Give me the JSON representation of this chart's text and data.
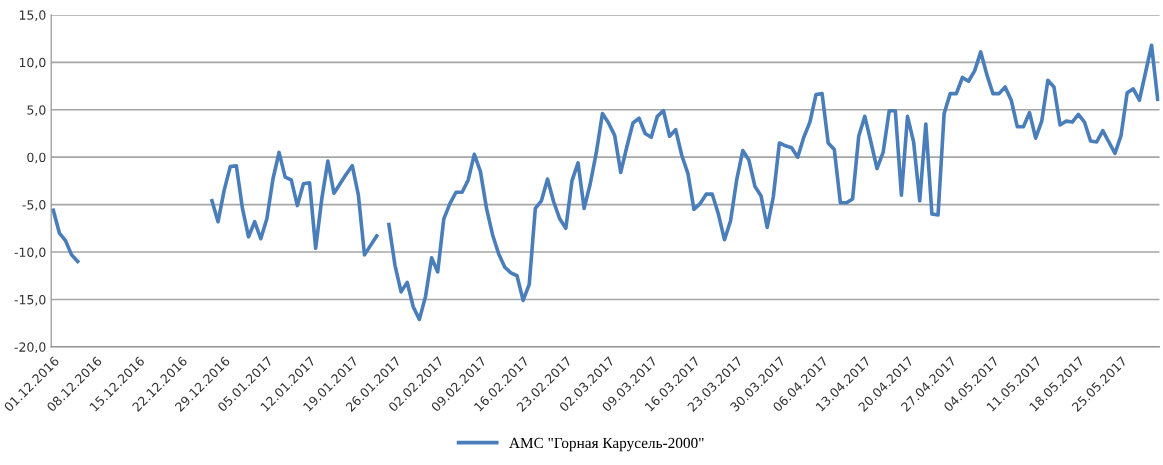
{
  "chart_data": {
    "type": "line",
    "x": [
      "2016-12-01",
      "2016-12-02",
      "2016-12-03",
      "2016-12-04",
      "2016-12-05",
      "2016-12-06",
      "2016-12-07",
      "2016-12-08",
      "2016-12-09",
      "2016-12-10",
      "2016-12-11",
      "2016-12-12",
      "2016-12-13",
      "2016-12-14",
      "2016-12-15",
      "2016-12-16",
      "2016-12-17",
      "2016-12-18",
      "2016-12-19",
      "2016-12-20",
      "2016-12-21",
      "2016-12-22",
      "2016-12-23",
      "2016-12-24",
      "2016-12-25",
      "2016-12-26",
      "2016-12-27",
      "2016-12-28",
      "2016-12-29",
      "2016-12-30",
      "2016-12-31",
      "2017-01-01",
      "2017-01-02",
      "2017-01-03",
      "2017-01-04",
      "2017-01-05",
      "2017-01-06",
      "2017-01-07",
      "2017-01-08",
      "2017-01-09",
      "2017-01-10",
      "2017-01-11",
      "2017-01-12",
      "2017-01-13",
      "2017-01-14",
      "2017-01-15",
      "2017-01-16",
      "2017-01-17",
      "2017-01-18",
      "2017-01-19",
      "2017-01-20",
      "2017-01-21",
      "2017-01-22",
      "2017-01-23",
      "2017-01-24",
      "2017-01-25",
      "2017-01-26",
      "2017-01-27",
      "2017-01-28",
      "2017-01-29",
      "2017-01-30",
      "2017-01-31",
      "2017-02-01",
      "2017-02-02",
      "2017-02-03",
      "2017-02-04",
      "2017-02-05",
      "2017-02-06",
      "2017-02-07",
      "2017-02-08",
      "2017-02-09",
      "2017-02-10",
      "2017-02-11",
      "2017-02-12",
      "2017-02-13",
      "2017-02-14",
      "2017-02-15",
      "2017-02-16",
      "2017-02-17",
      "2017-02-18",
      "2017-02-19",
      "2017-02-20",
      "2017-02-21",
      "2017-02-22",
      "2017-02-23",
      "2017-02-24",
      "2017-02-25",
      "2017-02-26",
      "2017-02-27",
      "2017-02-28",
      "2017-03-01",
      "2017-03-02",
      "2017-03-03",
      "2017-03-04",
      "2017-03-05",
      "2017-03-06",
      "2017-03-07",
      "2017-03-08",
      "2017-03-09",
      "2017-03-10",
      "2017-03-11",
      "2017-03-12",
      "2017-03-13",
      "2017-03-14",
      "2017-03-15",
      "2017-03-16",
      "2017-03-17",
      "2017-03-18",
      "2017-03-19",
      "2017-03-20",
      "2017-03-21",
      "2017-03-22",
      "2017-03-23",
      "2017-03-24",
      "2017-03-25",
      "2017-03-26",
      "2017-03-27",
      "2017-03-28",
      "2017-03-29",
      "2017-03-30",
      "2017-03-31",
      "2017-04-01",
      "2017-04-02",
      "2017-04-03",
      "2017-04-04",
      "2017-04-05",
      "2017-04-06",
      "2017-04-07",
      "2017-04-08",
      "2017-04-09",
      "2017-04-10",
      "2017-04-11",
      "2017-04-12",
      "2017-04-13",
      "2017-04-14",
      "2017-04-15",
      "2017-04-16",
      "2017-04-17",
      "2017-04-18",
      "2017-04-19",
      "2017-04-20",
      "2017-04-21",
      "2017-04-22",
      "2017-04-23",
      "2017-04-24",
      "2017-04-25",
      "2017-04-26",
      "2017-04-27",
      "2017-04-28",
      "2017-04-29",
      "2017-04-30",
      "2017-05-01",
      "2017-05-02",
      "2017-05-03",
      "2017-05-04",
      "2017-05-05",
      "2017-05-06",
      "2017-05-07",
      "2017-05-08",
      "2017-05-09",
      "2017-05-10",
      "2017-05-11",
      "2017-05-12",
      "2017-05-13",
      "2017-05-14",
      "2017-05-15",
      "2017-05-16",
      "2017-05-17",
      "2017-05-18",
      "2017-05-19",
      "2017-05-20",
      "2017-05-21",
      "2017-05-22",
      "2017-05-23",
      "2017-05-24",
      "2017-05-25",
      "2017-05-26",
      "2017-05-27",
      "2017-05-28",
      "2017-05-29",
      "2017-05-30",
      "2017-05-31"
    ],
    "series": [
      {
        "name": "АМС \"Горная Карусель-2000\"",
        "color": "#4a7ebb",
        "values": [
          -5.6,
          -8.0,
          -8.8,
          -10.3,
          -11.0,
          null,
          null,
          null,
          null,
          null,
          null,
          null,
          null,
          null,
          null,
          null,
          null,
          null,
          null,
          null,
          null,
          null,
          null,
          null,
          null,
          null,
          -4.6,
          -6.8,
          -3.5,
          -1.0,
          -0.9,
          -5.4,
          -8.4,
          -6.8,
          -8.6,
          -6.5,
          -2.3,
          0.5,
          -2.1,
          -2.4,
          -5.1,
          -2.8,
          -2.7,
          -9.6,
          -4.4,
          -0.4,
          -3.8,
          -2.8,
          -1.8,
          -0.9,
          -4.0,
          -10.3,
          -9.3,
          -8.3,
          null,
          -7.1,
          -11.4,
          -14.2,
          -13.2,
          -15.8,
          -17.1,
          -14.7,
          -10.6,
          -12.1,
          -6.5,
          -4.9,
          -3.7,
          -3.7,
          -2.4,
          0.3,
          -1.5,
          -5.4,
          -8.2,
          -10.2,
          -11.6,
          -12.2,
          -12.5,
          -15.1,
          -13.4,
          -5.4,
          -4.6,
          -2.3,
          -4.7,
          -6.5,
          -7.5,
          -2.5,
          -0.6,
          -5.4,
          -2.8,
          0.5,
          4.6,
          3.6,
          2.3,
          -1.6,
          1.1,
          3.6,
          4.1,
          2.5,
          2.1,
          4.3,
          4.9,
          2.2,
          2.9,
          0.2,
          -1.7,
          -5.5,
          -4.9,
          -3.9,
          -3.9,
          -6.0,
          -8.7,
          -6.7,
          -2.4,
          0.7,
          -0.3,
          -3.1,
          -4.1,
          -7.4,
          -4.2,
          1.5,
          1.2,
          1.0,
          0.0,
          2.1,
          3.7,
          6.6,
          6.7,
          1.5,
          0.8,
          -4.8,
          -4.8,
          -4.4,
          2.2,
          4.3,
          1.6,
          -1.2,
          0.5,
          4.9,
          4.9,
          -4.0,
          4.3,
          1.6,
          -4.6,
          3.5,
          -6.0,
          -6.1,
          4.6,
          6.7,
          6.7,
          8.4,
          8.0,
          9.1,
          11.1,
          8.7,
          6.7,
          6.7,
          7.4,
          6.0,
          3.2,
          3.2,
          4.7,
          2.0,
          3.8,
          8.1,
          7.4,
          3.4,
          3.8,
          3.7,
          4.5,
          3.7,
          1.7,
          1.6,
          2.8,
          1.6,
          0.4,
          2.3,
          6.8,
          7.2,
          6.0,
          8.9,
          11.8,
          6.1
        ]
      }
    ],
    "xlim": [
      "2016-12-01",
      "2017-05-31"
    ],
    "xticks": [
      {
        "value": "2016-12-01",
        "label": "01.12.2016"
      },
      {
        "value": "2016-12-08",
        "label": "08.12.2016"
      },
      {
        "value": "2016-12-15",
        "label": "15.12.2016"
      },
      {
        "value": "2016-12-22",
        "label": "22.12.2016"
      },
      {
        "value": "2016-12-29",
        "label": "29.12.2016"
      },
      {
        "value": "2017-01-05",
        "label": "05.01.2017"
      },
      {
        "value": "2017-01-12",
        "label": "12.01.2017"
      },
      {
        "value": "2017-01-19",
        "label": "19.01.2017"
      },
      {
        "value": "2017-01-26",
        "label": "26.01.2017"
      },
      {
        "value": "2017-02-02",
        "label": "02.02.2017"
      },
      {
        "value": "2017-02-09",
        "label": "09.02.2017"
      },
      {
        "value": "2017-02-16",
        "label": "16.02.2017"
      },
      {
        "value": "2017-02-23",
        "label": "23.02.2017"
      },
      {
        "value": "2017-03-02",
        "label": "02.03.2017"
      },
      {
        "value": "2017-03-09",
        "label": "09.03.2017"
      },
      {
        "value": "2017-03-16",
        "label": "16.03.2017"
      },
      {
        "value": "2017-03-23",
        "label": "23.03.2017"
      },
      {
        "value": "2017-03-30",
        "label": "30.03.2017"
      },
      {
        "value": "2017-04-06",
        "label": "06.04.2017"
      },
      {
        "value": "2017-04-13",
        "label": "13.04.2017"
      },
      {
        "value": "2017-04-20",
        "label": "20.04.2017"
      },
      {
        "value": "2017-04-27",
        "label": "27.04.2017"
      },
      {
        "value": "2017-05-04",
        "label": "04.05.2017"
      },
      {
        "value": "2017-05-11",
        "label": "11.05.2017"
      },
      {
        "value": "2017-05-18",
        "label": "18.05.2017"
      },
      {
        "value": "2017-05-25",
        "label": "25.05.2017"
      }
    ],
    "ylim": [
      -20,
      15
    ],
    "yticks": [
      {
        "value": -20,
        "label": "-20,0"
      },
      {
        "value": -15,
        "label": "-15,0"
      },
      {
        "value": -10,
        "label": "-10,0"
      },
      {
        "value": -5,
        "label": "-5,0"
      },
      {
        "value": 0,
        "label": "0,0"
      },
      {
        "value": 5,
        "label": "5,0"
      },
      {
        "value": 10,
        "label": "10,0"
      },
      {
        "value": 15,
        "label": "15,0"
      }
    ],
    "grid": "y",
    "legend": "bottom",
    "marker": "none",
    "line_style": "solid"
  }
}
